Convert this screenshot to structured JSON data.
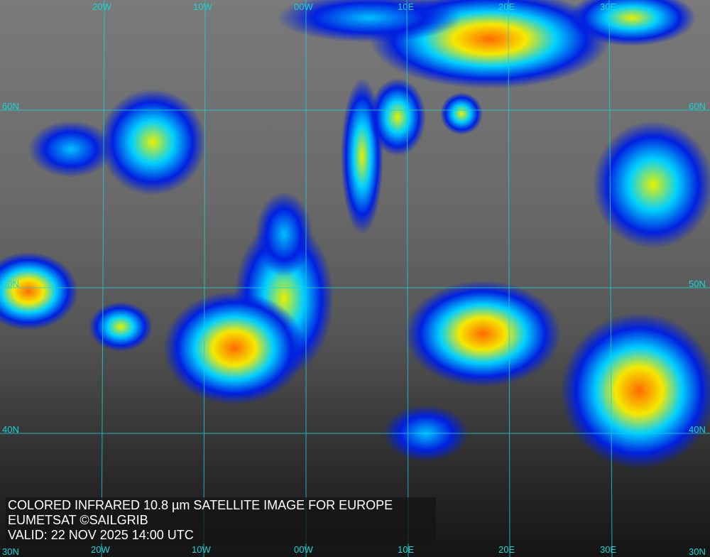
{
  "caption": {
    "line1": "COLORED INFRARED 10.8 µm SATELLITE IMAGE FOR EUROPE",
    "line2": "EUMETSAT ©SAILGRIB",
    "line3": "VALID:  22 NOV 2025 14:00 UTC"
  },
  "longitude_labels": [
    "20W",
    "10W",
    "00W",
    "10E",
    "20E",
    "30E"
  ],
  "latitude_labels": [
    "60N",
    "50N",
    "40N",
    "30N"
  ],
  "colors": {
    "grid": "#16d6d6",
    "cloud_cold": "#0018e0",
    "cloud_mid": "#00c8ff",
    "cloud_warm": "#f0f000",
    "cloud_hot": "#ff5000"
  }
}
